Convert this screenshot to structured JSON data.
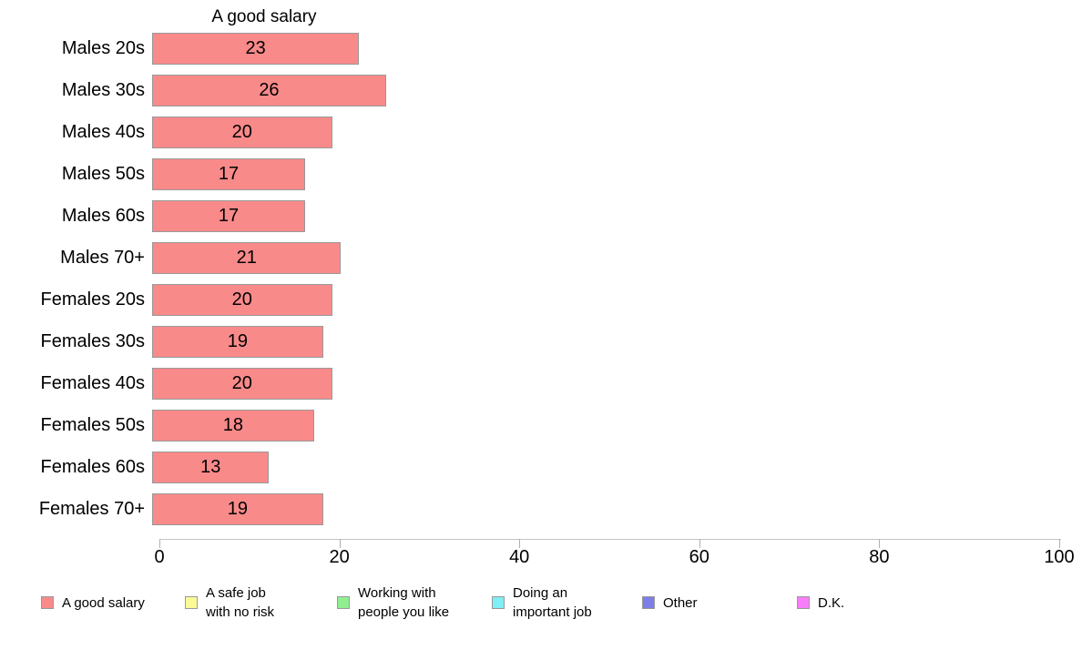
{
  "chart_data": {
    "type": "bar",
    "orientation": "horizontal",
    "title": "A good salary",
    "categories": [
      "Males 20s",
      "Males 30s",
      "Males 40s",
      "Males 50s",
      "Males 60s",
      "Males 70+",
      "Females 20s",
      "Females 30s",
      "Females 40s",
      "Females 50s",
      "Females 60s",
      "Females 70+"
    ],
    "values": [
      23,
      26,
      20,
      17,
      17,
      21,
      20,
      19,
      20,
      18,
      13,
      19
    ],
    "value_labels_shown": true,
    "xlabel": "",
    "ylabel": "",
    "xlim": [
      0,
      100
    ],
    "xticks": [
      0,
      20,
      40,
      60,
      80,
      100
    ],
    "grid": false,
    "bar_color": "#F98A8A",
    "bar_border_color": "#999999",
    "axis_color": "#c4c4c4",
    "legend_position": "bottom",
    "legend": [
      {
        "label": "A good salary",
        "color": "#F98A8A"
      },
      {
        "label": "A safe job\nwith no risk",
        "color": "#FAFA96"
      },
      {
        "label": "Working with\npeople you like",
        "color": "#90EE90"
      },
      {
        "label": "Doing an\nimportant job",
        "color": "#7FEEF5"
      },
      {
        "label": "Other",
        "color": "#7E7EE8"
      },
      {
        "label": "D.K.",
        "color": "#F87DF8"
      }
    ]
  }
}
